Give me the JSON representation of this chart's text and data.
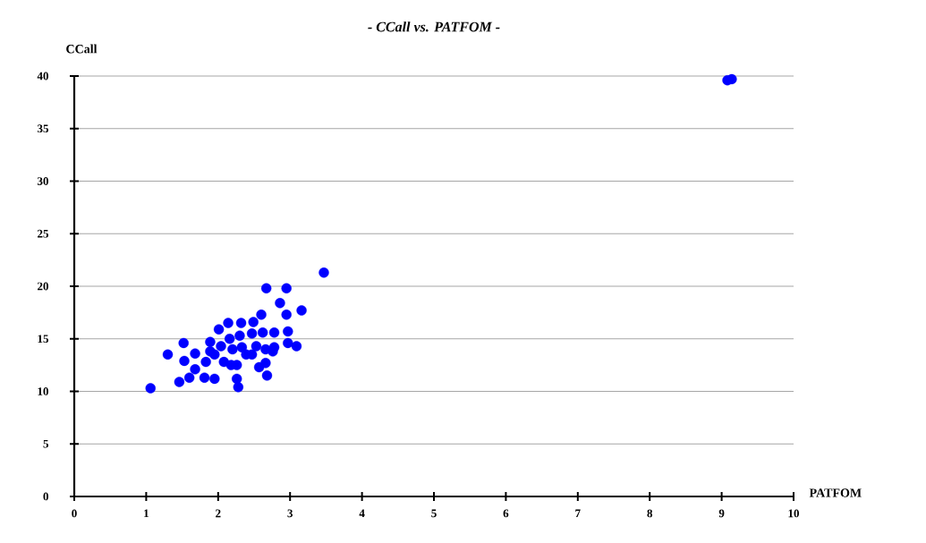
{
  "chart_data": {
    "type": "scatter",
    "title": "- CCall vs. PATFOM -",
    "xlabel": "PATFOM",
    "ylabel": "CCall",
    "x": [
      1.06,
      1.3,
      1.52,
      1.46,
      1.53,
      1.6,
      1.68,
      1.68,
      1.81,
      1.83,
      1.89,
      1.95,
      2.01,
      1.95,
      2.04,
      2.08,
      2.14,
      2.16,
      2.2,
      2.18,
      2.26,
      2.28,
      2.32,
      2.3,
      2.33,
      2.26,
      2.39,
      2.49,
      2.47,
      2.53,
      2.47,
      2.6,
      2.62,
      2.66,
      2.57,
      2.68,
      2.67,
      2.78,
      2.76,
      2.86,
      2.95,
      2.95,
      2.97,
      2.97,
      3.09,
      3.16,
      3.47,
      2.78,
      1.89,
      2.66,
      9.08,
      9.14
    ],
    "values": [
      10.3,
      13.5,
      14.6,
      10.9,
      12.9,
      11.3,
      13.6,
      12.1,
      11.3,
      12.8,
      14.7,
      11.2,
      15.9,
      13.5,
      14.3,
      12.8,
      16.5,
      15.0,
      14.0,
      12.5,
      11.2,
      10.4,
      16.5,
      15.3,
      14.2,
      12.5,
      13.5,
      16.6,
      15.5,
      14.3,
      13.5,
      17.3,
      15.6,
      14.0,
      12.3,
      11.5,
      19.8,
      15.6,
      13.8,
      18.4,
      19.8,
      17.3,
      15.7,
      14.6,
      14.3,
      17.7,
      21.3,
      14.2,
      13.8,
      12.7,
      39.6,
      39.7
    ],
    "color": "#0000ff",
    "marker": "circle",
    "grid": "y",
    "xlim": [
      0,
      10
    ],
    "ylim": [
      0,
      40
    ],
    "xticks": [
      0,
      1,
      2,
      3,
      4,
      5,
      6,
      7,
      8,
      9,
      10
    ],
    "yticks": [
      0,
      5,
      10,
      15,
      20,
      25,
      30,
      35,
      40
    ]
  }
}
